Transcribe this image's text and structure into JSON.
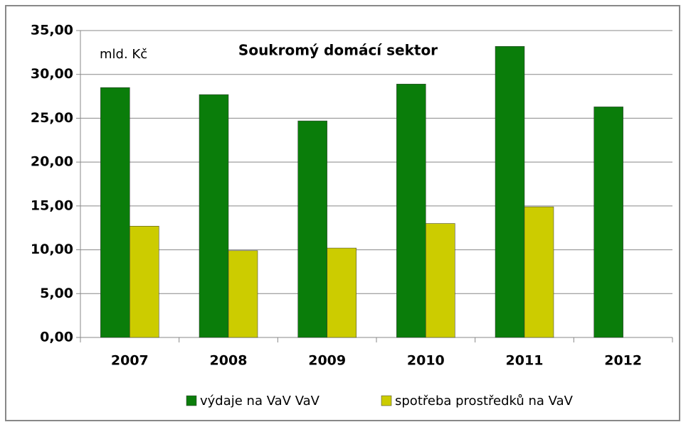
{
  "chart_data": {
    "type": "bar",
    "title": "Soukromý domácí sektor",
    "annotation": "mld. Kč",
    "categories": [
      "2007",
      "2008",
      "2009",
      "2010",
      "2011",
      "2012"
    ],
    "series": [
      {
        "name": "výdaje na VaV VaV",
        "color": "#0a7d0a",
        "values": [
          28.5,
          27.7,
          24.7,
          28.9,
          33.2,
          26.3
        ]
      },
      {
        "name": "spotřeba prostředků na VaV",
        "color": "#cccc00",
        "values": [
          12.7,
          9.9,
          10.2,
          13.0,
          14.9,
          null
        ]
      }
    ],
    "ylim": [
      0,
      35
    ],
    "yticks": [
      {
        "value": 0,
        "label": "0,00"
      },
      {
        "value": 5,
        "label": "5,00"
      },
      {
        "value": 10,
        "label": "10,00"
      },
      {
        "value": 15,
        "label": "15,00"
      },
      {
        "value": 20,
        "label": "20,00"
      },
      {
        "value": 25,
        "label": "25,00"
      },
      {
        "value": 30,
        "label": "30,00"
      },
      {
        "value": 35,
        "label": "35,00"
      }
    ],
    "grid": true,
    "legend": "bottom"
  }
}
